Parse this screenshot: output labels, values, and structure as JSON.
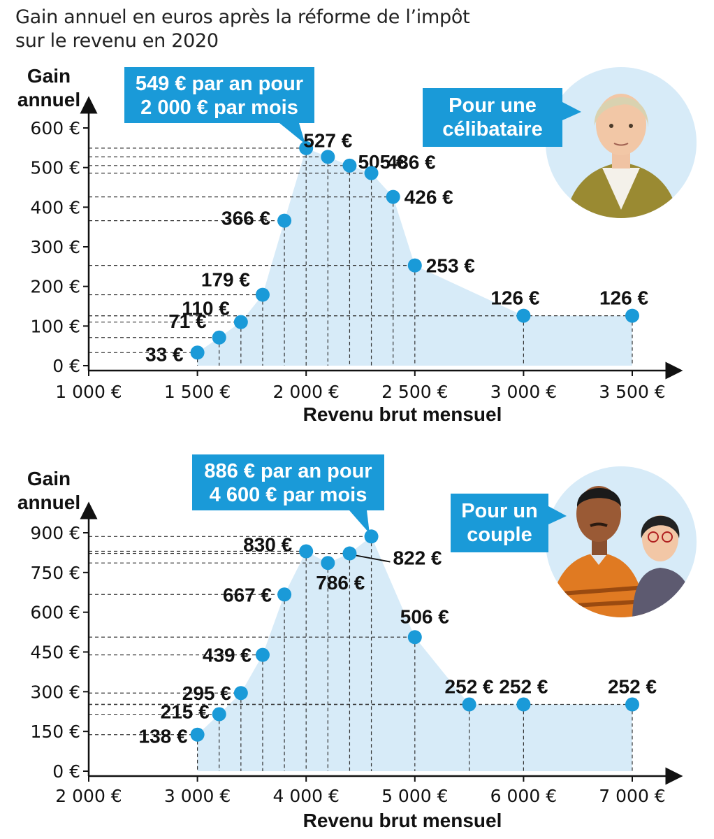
{
  "title": [
    "Gain annuel en euros après la réforme de l’impôt",
    "sur le revenu en 2020"
  ],
  "colors": {
    "accent": "#1a9ad8",
    "area": "#d7ebf8",
    "axis": "#111111",
    "guide": "#333333",
    "callout_text": "#ffffff"
  },
  "chart_data": [
    {
      "type": "area",
      "ylabel": [
        "Gain",
        "annuel"
      ],
      "xlabel": "Revenu brut mensuel",
      "xlim": [
        1000,
        3500
      ],
      "ylim": [
        0,
        600
      ],
      "xticks": [
        1000,
        1500,
        2000,
        2500,
        3000,
        3500
      ],
      "xtick_labels": [
        "1 000 €",
        "1 500 €",
        "2 000 €",
        "2 500 €",
        "3 000 €",
        "3 500 €"
      ],
      "yticks": [
        0,
        100,
        200,
        300,
        400,
        500,
        600
      ],
      "ytick_labels": [
        "0 €",
        "100 €",
        "200 €",
        "300 €",
        "400 €",
        "500 €",
        "600 €"
      ],
      "x": [
        1500,
        1600,
        1700,
        1800,
        1900,
        2000,
        2100,
        2200,
        2300,
        2400,
        2500,
        3000,
        3500
      ],
      "y": [
        33,
        71,
        110,
        179,
        366,
        549,
        527,
        505,
        486,
        426,
        253,
        126,
        126
      ],
      "point_labels": [
        "33 €",
        "71 €",
        "110 €",
        "179 €",
        "366 €",
        "",
        "527 €",
        "505 €",
        "486 €",
        "426 €",
        "253 €",
        "126 €",
        "126 €"
      ],
      "callout": [
        "549 € par an pour",
        "2 000 € par mois"
      ],
      "badge": [
        "Pour une",
        "célibataire"
      ],
      "illustration": "woman-portrait"
    },
    {
      "type": "area",
      "ylabel": [
        "Gain",
        "annuel"
      ],
      "xlabel": "Revenu brut mensuel",
      "xlim": [
        2000,
        7000
      ],
      "ylim": [
        0,
        900
      ],
      "xticks": [
        2000,
        3000,
        4000,
        5000,
        6000,
        7000
      ],
      "xtick_labels": [
        "2 000 €",
        "3 000 €",
        "4 000 €",
        "5 000 €",
        "6 000 €",
        "7 000 €"
      ],
      "yticks": [
        0,
        150,
        300,
        450,
        600,
        750,
        900
      ],
      "ytick_labels": [
        "0 €",
        "150 €",
        "300 €",
        "450 €",
        "600 €",
        "750 €",
        "900 €"
      ],
      "x": [
        3000,
        3200,
        3400,
        3600,
        3800,
        4000,
        4200,
        4400,
        4600,
        5000,
        5500,
        6000,
        7000
      ],
      "y": [
        138,
        215,
        295,
        439,
        667,
        830,
        786,
        822,
        886,
        506,
        252,
        252,
        252
      ],
      "point_labels": [
        "138 €",
        "215 €",
        "295 €",
        "439 €",
        "667 €",
        "830 €",
        "786 €",
        "822 €",
        "",
        "506 €",
        "252 €",
        "252 €",
        "252 €"
      ],
      "callout": [
        "886 € par an pour",
        "4 600 € par mois"
      ],
      "badge": [
        "Pour un",
        "couple"
      ],
      "illustration": "couple-portrait"
    }
  ]
}
